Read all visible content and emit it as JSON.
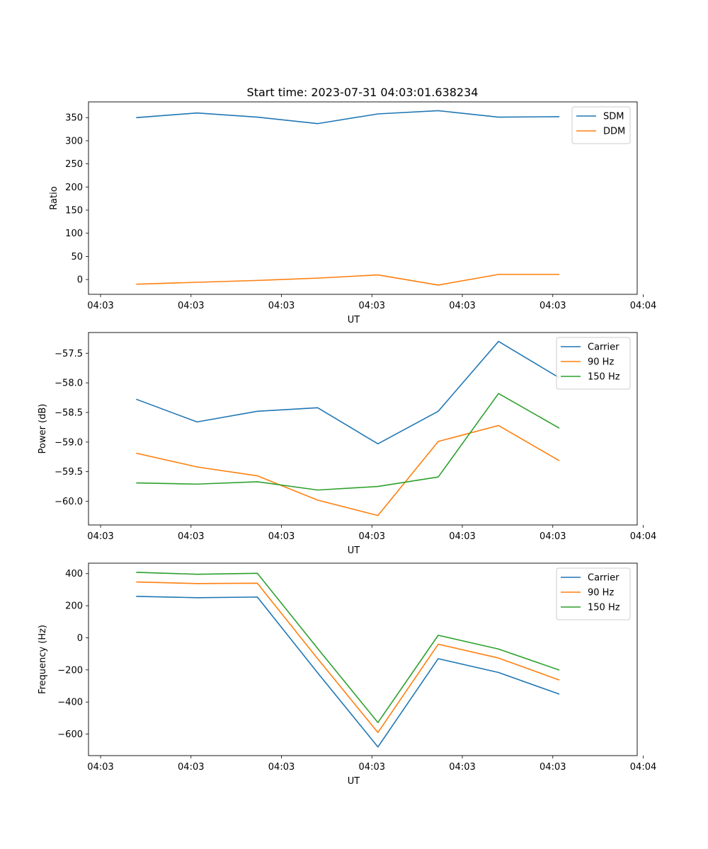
{
  "figure_title": "Start time: 2023-07-31 04:03:01.638234",
  "chart_data": [
    {
      "type": "line",
      "title": "Start time: 2023-07-31 04:03:01.638234",
      "xlabel": "UT",
      "ylabel": "Ratio",
      "x": [
        1,
        2,
        3,
        4,
        5,
        6,
        7,
        8
      ],
      "xlim": [
        0.2,
        9.3
      ],
      "x_ticks": [
        0.4,
        1.9,
        3.4,
        4.9,
        6.4,
        7.9,
        9.4
      ],
      "x_tick_labels": [
        "04:03",
        "04:03",
        "04:03",
        "04:03",
        "04:03",
        "04:03",
        "04:04"
      ],
      "ylim": [
        -32,
        384
      ],
      "y_ticks": [
        0,
        50,
        100,
        150,
        200,
        250,
        300,
        350
      ],
      "y_tick_labels": [
        "0",
        "50",
        "100",
        "150",
        "200",
        "250",
        "300",
        "350"
      ],
      "legend": "top-right",
      "series": [
        {
          "name": "SDM",
          "color": "#1f77b4",
          "values": [
            350,
            360,
            351,
            337,
            358,
            365,
            351,
            352
          ]
        },
        {
          "name": "DDM",
          "color": "#ff7f0e",
          "values": [
            -10,
            -6,
            -2,
            3,
            10,
            -12,
            11,
            11
          ]
        }
      ]
    },
    {
      "type": "line",
      "xlabel": "UT",
      "ylabel": "Power (dB)",
      "x": [
        1,
        2,
        3,
        4,
        5,
        6,
        7,
        8
      ],
      "xlim": [
        0.2,
        9.3
      ],
      "x_ticks": [
        0.4,
        1.9,
        3.4,
        4.9,
        6.4,
        7.9,
        9.4
      ],
      "x_tick_labels": [
        "04:03",
        "04:03",
        "04:03",
        "04:03",
        "04:03",
        "04:03",
        "04:04"
      ],
      "ylim": [
        -60.4,
        -57.15
      ],
      "y_ticks": [
        -60.0,
        -59.5,
        -59.0,
        -58.5,
        -58.0,
        -57.5
      ],
      "y_tick_labels": [
        "−60.0",
        "−59.5",
        "−59.0",
        "−58.5",
        "−58.0",
        "−57.5"
      ],
      "legend": "top-right",
      "series": [
        {
          "name": "Carrier",
          "color": "#1f77b4",
          "values": [
            -58.28,
            -58.66,
            -58.48,
            -58.42,
            -59.03,
            -58.48,
            -57.3,
            -57.91
          ]
        },
        {
          "name": "90 Hz",
          "color": "#ff7f0e",
          "values": [
            -59.19,
            -59.42,
            -59.57,
            -59.98,
            -60.24,
            -58.99,
            -58.72,
            -59.31
          ]
        },
        {
          "name": "150 Hz",
          "color": "#2ca02c",
          "values": [
            -59.69,
            -59.71,
            -59.67,
            -59.81,
            -59.75,
            -59.59,
            -58.18,
            -58.76
          ]
        }
      ]
    },
    {
      "type": "line",
      "xlabel": "UT",
      "ylabel": "Frequency (Hz)",
      "x": [
        1,
        2,
        3,
        4,
        5,
        6,
        7,
        8
      ],
      "xlim": [
        0.2,
        9.3
      ],
      "x_ticks": [
        0.4,
        1.9,
        3.4,
        4.9,
        6.4,
        7.9,
        9.4
      ],
      "x_tick_labels": [
        "04:03",
        "04:03",
        "04:03",
        "04:03",
        "04:03",
        "04:03",
        "04:04"
      ],
      "ylim": [
        -734,
        465
      ],
      "y_ticks": [
        -600,
        -400,
        -200,
        0,
        200,
        400
      ],
      "y_tick_labels": [
        "−600",
        "−400",
        "−200",
        "0",
        "200",
        "400"
      ],
      "legend": "top-right",
      "series": [
        {
          "name": "Carrier",
          "color": "#1f77b4",
          "values": [
            258,
            250,
            254,
            -218,
            -680,
            -130,
            -216,
            -350
          ]
        },
        {
          "name": "90 Hz",
          "color": "#ff7f0e",
          "values": [
            348,
            338,
            340,
            -130,
            -590,
            -40,
            -126,
            -262
          ]
        },
        {
          "name": "150 Hz",
          "color": "#2ca02c",
          "values": [
            408,
            396,
            402,
            -66,
            -528,
            16,
            -70,
            -200
          ]
        }
      ]
    }
  ]
}
